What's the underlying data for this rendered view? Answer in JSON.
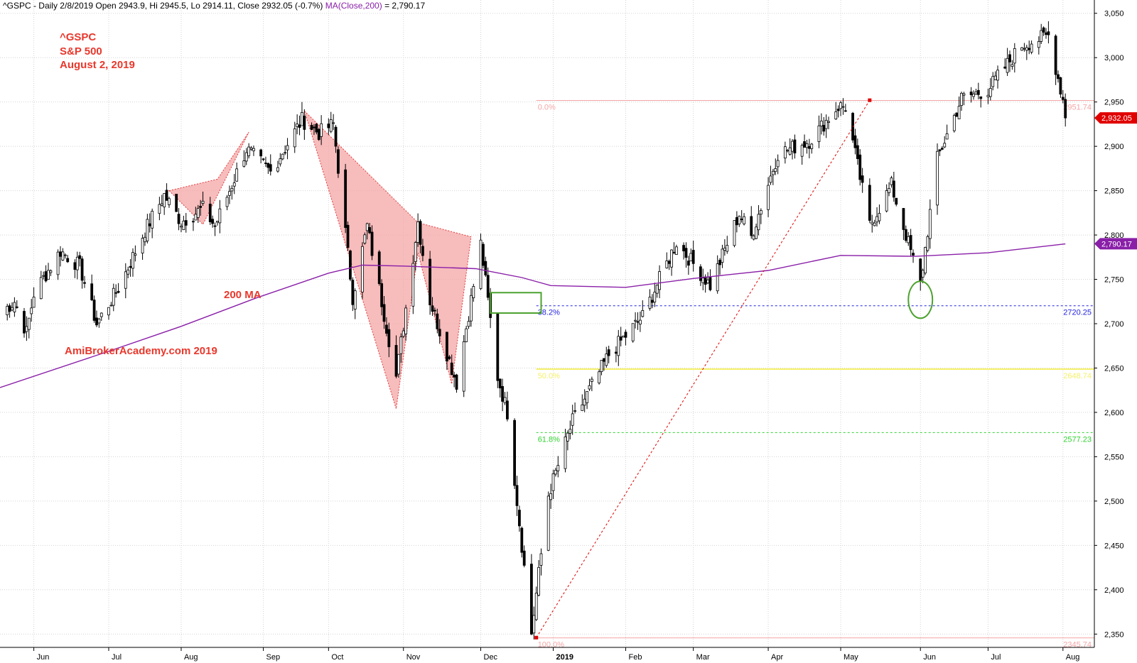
{
  "header": {
    "text": "^GSPC - Daily 2/8/2019 Open 2943.9, Hi 2945.5, Lo 2914.11, Close 2932.05 (-0.7%)",
    "ma_text": "MA(Close,200)",
    "ma_value": " = 2,790.17"
  },
  "annotations": {
    "ticker": "^GSPC",
    "index_name": "S&P 500",
    "date": "August 2, 2019",
    "ma_label": "200 MA",
    "watermark": "AmiBrokerAcademy.com   2019"
  },
  "colors": {
    "up": "#ffffff",
    "down": "#000000",
    "ma": "#8a1fa8",
    "fib_0": "#f4a6a6",
    "fib_382": "#2323e0",
    "fib_50": "#f5f06a",
    "fib_618": "#32d232",
    "pattern_fill": "#f4a6a6",
    "annotation_red": "#e8382c",
    "callout_green": "#4ca22e",
    "price_tag": "#e00000"
  },
  "chart_data": {
    "type": "candlestick",
    "title": "^GSPC S&P 500",
    "ylim": [
      2335,
      3065
    ],
    "y_ticks": [
      2350,
      2400,
      2450,
      2500,
      2550,
      2600,
      2650,
      2700,
      2750,
      2800,
      2850,
      2900,
      2950,
      3000,
      3050
    ],
    "y_tick_labels": [
      "2,350",
      "2,400",
      "2,450",
      "2,500",
      "2,550",
      "2,600",
      "2,650",
      "2,700",
      "2,750",
      "2,800",
      "2,850",
      "2,900",
      "2,950",
      "3,000",
      "3,050"
    ],
    "x_labels": [
      {
        "label": "Jun",
        "date": "2018-06-01"
      },
      {
        "label": "Jul",
        "date": "2018-07-02"
      },
      {
        "label": "Aug",
        "date": "2018-08-01"
      },
      {
        "label": "Sep",
        "date": "2018-09-04"
      },
      {
        "label": "Oct",
        "date": "2018-10-01"
      },
      {
        "label": "Nov",
        "date": "2018-11-01"
      },
      {
        "label": "Dec",
        "date": "2018-12-03"
      },
      {
        "label": "2019",
        "date": "2019-01-02",
        "bold": true
      },
      {
        "label": "Feb",
        "date": "2019-02-01"
      },
      {
        "label": "Mar",
        "date": "2019-03-01"
      },
      {
        "label": "Apr",
        "date": "2019-04-01"
      },
      {
        "label": "May",
        "date": "2019-05-01"
      },
      {
        "label": "Jun",
        "date": "2019-06-03"
      },
      {
        "label": "Jul",
        "date": "2019-07-01"
      },
      {
        "label": "Aug",
        "date": "2019-08-01"
      }
    ],
    "x_range": [
      "2018-05-18",
      "2019-08-14"
    ],
    "price_path": [
      [
        "2018-05-18",
        2712
      ],
      [
        "2018-05-24",
        2725
      ],
      [
        "2018-05-29",
        2690
      ],
      [
        "2018-06-01",
        2734
      ],
      [
        "2018-06-12",
        2782
      ],
      [
        "2018-06-20",
        2765
      ],
      [
        "2018-06-27",
        2700
      ],
      [
        "2018-07-06",
        2740
      ],
      [
        "2018-07-17",
        2805
      ],
      [
        "2018-07-25",
        2845
      ],
      [
        "2018-08-01",
        2815
      ],
      [
        "2018-08-10",
        2830
      ],
      [
        "2018-08-15",
        2810
      ],
      [
        "2018-08-28",
        2897
      ],
      [
        "2018-09-07",
        2871
      ],
      [
        "2018-09-20",
        2930
      ],
      [
        "2018-09-27",
        2915
      ],
      [
        "2018-10-03",
        2925
      ],
      [
        "2018-10-11",
        2730
      ],
      [
        "2018-10-17",
        2810
      ],
      [
        "2018-10-29",
        2640
      ],
      [
        "2018-11-07",
        2815
      ],
      [
        "2018-11-12",
        2726
      ],
      [
        "2018-11-23",
        2633
      ],
      [
        "2018-12-03",
        2790
      ],
      [
        "2018-12-10",
        2640
      ],
      [
        "2018-12-14",
        2600
      ],
      [
        "2018-12-24",
        2351
      ],
      [
        "2018-12-31",
        2507
      ],
      [
        "2019-01-10",
        2590
      ],
      [
        "2019-01-25",
        2665
      ],
      [
        "2019-02-08",
        2708
      ],
      [
        "2019-02-22",
        2792
      ],
      [
        "2019-03-08",
        2743
      ],
      [
        "2019-03-20",
        2824
      ],
      [
        "2019-03-25",
        2798
      ],
      [
        "2019-04-05",
        2892
      ],
      [
        "2019-04-18",
        2906
      ],
      [
        "2019-04-30",
        2945
      ],
      [
        "2019-05-03",
        2945
      ],
      [
        "2019-05-13",
        2811
      ],
      [
        "2019-05-22",
        2856
      ],
      [
        "2019-06-03",
        2744
      ],
      [
        "2019-06-10",
        2886
      ],
      [
        "2019-06-20",
        2954
      ],
      [
        "2019-07-01",
        2964
      ],
      [
        "2019-07-15",
        3014
      ],
      [
        "2019-07-26",
        3025
      ],
      [
        "2019-08-01",
        2953
      ],
      [
        "2019-08-02",
        2932
      ]
    ],
    "ma200": [
      [
        "2018-05-18",
        2628
      ],
      [
        "2018-07-01",
        2668
      ],
      [
        "2018-08-01",
        2697
      ],
      [
        "2018-09-01",
        2729
      ],
      [
        "2018-10-01",
        2757
      ],
      [
        "2018-10-15",
        2766
      ],
      [
        "2018-11-01",
        2765
      ],
      [
        "2018-12-01",
        2762
      ],
      [
        "2018-12-20",
        2752
      ],
      [
        "2019-01-01",
        2743
      ],
      [
        "2019-02-01",
        2741
      ],
      [
        "2019-03-01",
        2751
      ],
      [
        "2019-04-01",
        2760
      ],
      [
        "2019-05-01",
        2777
      ],
      [
        "2019-06-01",
        2776
      ],
      [
        "2019-07-01",
        2780
      ],
      [
        "2019-08-02",
        2790
      ]
    ],
    "fibonacci": [
      {
        "label": "0.0%",
        "value": 2951.74,
        "value_label": "2951.74"
      },
      {
        "label": "38.2%",
        "value": 2720.25,
        "value_label": "2720.25"
      },
      {
        "label": "50.0%",
        "value": 2648.74,
        "value_label": "2648.74"
      },
      {
        "label": "61.8%",
        "value": 2577.23,
        "value_label": "2577.23"
      },
      {
        "label": "100.0%",
        "value": 2345.74,
        "value_label": "2345.74"
      }
    ],
    "fib_start": "2018-12-26",
    "trend_line": [
      [
        "2018-12-26",
        2346
      ],
      [
        "2019-05-13",
        2952
      ]
    ],
    "last_price": {
      "value": 2932.05,
      "label": "2,932.05"
    },
    "ma_last": {
      "value": 2790.17,
      "label": "2,790.17"
    },
    "patterns": [
      [
        [
          "2018-07-27",
          2850
        ],
        [
          "2018-08-16",
          2863
        ],
        [
          "2018-08-29",
          2916
        ],
        [
          "2018-08-10",
          2812
        ]
      ],
      [
        [
          "2018-09-21",
          2940
        ],
        [
          "2018-11-07",
          2814
        ],
        [
          "2018-11-29",
          2798
        ],
        [
          "2018-11-21",
          2632
        ],
        [
          "2018-11-07",
          2780
        ],
        [
          "2018-10-29",
          2604
        ]
      ]
    ],
    "callouts": {
      "box_date": [
        "2018-12-07",
        "2018-12-28"
      ],
      "box_value": [
        2712,
        2735
      ],
      "circle": {
        "date": "2019-06-03",
        "value": 2727
      }
    }
  }
}
